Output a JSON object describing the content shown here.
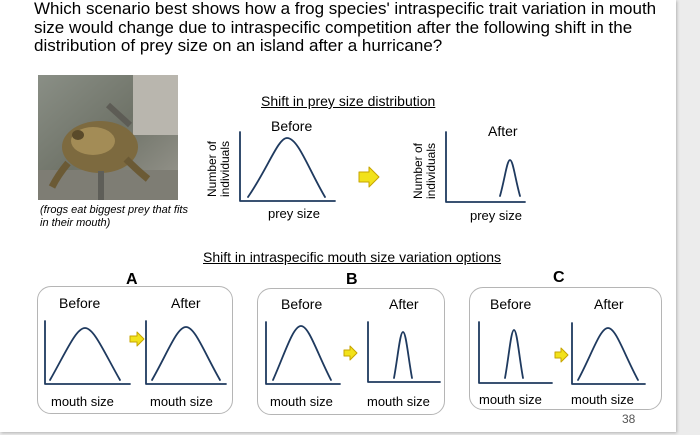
{
  "question": "Which scenario best shows how a frog species' intraspecific trait variation in mouth size would change due to intraspecific competition after the following shift in the distribution of prey size on an island after a hurricane?",
  "photo": {
    "description_icon": "frog-photo-icon",
    "caption": "(frogs eat biggest prey that fits in their mouth)"
  },
  "prey_shift": {
    "title": "Shift in prey size distribution",
    "before_label": "Before",
    "after_label": "After",
    "y_axis_label_line1": "Number of",
    "y_axis_label_line2": "individuals",
    "x_axis_label": "prey size"
  },
  "options": {
    "title": "Shift in intraspecific mouth size variation options",
    "items": [
      {
        "letter": "A",
        "before_label": "Before",
        "after_label": "After",
        "before_x_label": "mouth size",
        "after_x_label": "mouth size"
      },
      {
        "letter": "B",
        "before_label": "Before",
        "after_label": "After",
        "before_x_label": "mouth size",
        "after_x_label": "mouth size"
      },
      {
        "letter": "C",
        "before_label": "Before",
        "after_label": "After",
        "before_x_label": "mouth size",
        "after_x_label": "mouth size"
      }
    ]
  },
  "colors": {
    "curve": "#1f3a5f",
    "arrow_fill": "#f2e21a",
    "arrow_stroke": "#c7a400",
    "box_border": "#b5b5b5"
  },
  "page_number": "38"
}
